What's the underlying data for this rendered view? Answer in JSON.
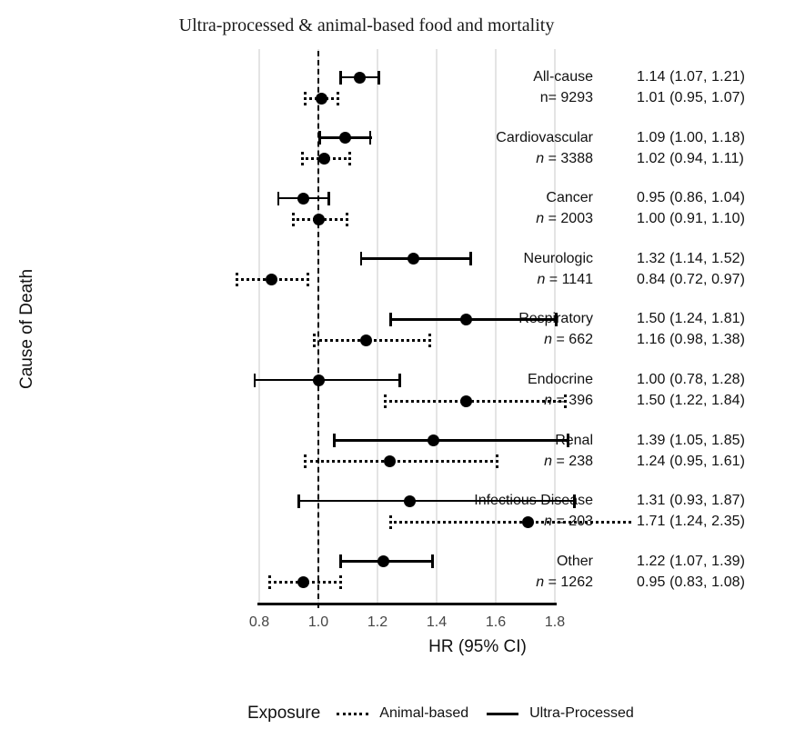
{
  "figure_title": "Ultra-processed & animal-based food and mortality",
  "y_axis_title": "Cause of Death",
  "x_axis_title": "HR (95% CI)",
  "legend": {
    "title": "Exposure",
    "items": [
      {
        "label": "Animal-based",
        "line_style": "dotted"
      },
      {
        "label": "Ultra-Processed",
        "line_style": "solid"
      }
    ]
  },
  "chart_data": {
    "type": "forest",
    "title": "Ultra-processed & animal-based food and mortality",
    "xlabel": "HR (95% CI)",
    "ylabel": "Cause of Death",
    "x_axis": {
      "min": 0.8,
      "max": 1.8,
      "ticks": [
        0.8,
        1.0,
        1.2,
        1.4,
        1.6,
        1.8
      ],
      "tick_labels": [
        "0.8",
        "1.0",
        "1.2",
        "1.4",
        "1.6",
        "1.8"
      ],
      "reference_line": 1.0,
      "grid": true
    },
    "series_names": [
      "Ultra-Processed",
      "Animal-based"
    ],
    "groups": [
      {
        "cause": "All-cause",
        "n_text": "n= 9293",
        "n_italic": false,
        "ultra_processed": {
          "hr": 1.14,
          "ci_low": 1.07,
          "ci_high": 1.21,
          "label": "1.14 (1.07, 1.21)"
        },
        "animal_based": {
          "hr": 1.01,
          "ci_low": 0.95,
          "ci_high": 1.07,
          "label": "1.01 (0.95, 1.07)"
        }
      },
      {
        "cause": "Cardiovascular",
        "n_text": "n = 3388",
        "n_italic": true,
        "ultra_processed": {
          "hr": 1.09,
          "ci_low": 1.0,
          "ci_high": 1.18,
          "label": "1.09 (1.00, 1.18)"
        },
        "animal_based": {
          "hr": 1.02,
          "ci_low": 0.94,
          "ci_high": 1.11,
          "label": "1.02 (0.94, 1.11)"
        }
      },
      {
        "cause": "Cancer",
        "n_text": "n = 2003",
        "n_italic": true,
        "ultra_processed": {
          "hr": 0.95,
          "ci_low": 0.86,
          "ci_high": 1.04,
          "label": "0.95 (0.86, 1.04)"
        },
        "animal_based": {
          "hr": 1.0,
          "ci_low": 0.91,
          "ci_high": 1.1,
          "label": "1.00 (0.91, 1.10)"
        }
      },
      {
        "cause": "Neurologic",
        "n_text": "n = 1141",
        "n_italic": true,
        "ultra_processed": {
          "hr": 1.32,
          "ci_low": 1.14,
          "ci_high": 1.52,
          "label": "1.32 (1.14, 1.52)"
        },
        "animal_based": {
          "hr": 0.84,
          "ci_low": 0.72,
          "ci_high": 0.97,
          "label": "0.84 (0.72, 0.97)"
        }
      },
      {
        "cause": "Respiratory",
        "n_text": "n = 662",
        "n_italic": true,
        "ultra_processed": {
          "hr": 1.5,
          "ci_low": 1.24,
          "ci_high": 1.81,
          "label": "1.50 (1.24, 1.81)"
        },
        "animal_based": {
          "hr": 1.16,
          "ci_low": 0.98,
          "ci_high": 1.38,
          "label": "1.16 (0.98, 1.38)"
        }
      },
      {
        "cause": "Endocrine",
        "n_text": "n = 396",
        "n_italic": true,
        "ultra_processed": {
          "hr": 1.0,
          "ci_low": 0.78,
          "ci_high": 1.28,
          "label": "1.00 (0.78, 1.28)"
        },
        "animal_based": {
          "hr": 1.5,
          "ci_low": 1.22,
          "ci_high": 1.84,
          "label": "1.50 (1.22, 1.84)"
        }
      },
      {
        "cause": "Renal",
        "n_text": "n = 238",
        "n_italic": true,
        "ultra_processed": {
          "hr": 1.39,
          "ci_low": 1.05,
          "ci_high": 1.85,
          "label": "1.39 (1.05, 1.85)"
        },
        "animal_based": {
          "hr": 1.24,
          "ci_low": 0.95,
          "ci_high": 1.61,
          "label": "1.24 (0.95, 1.61)"
        }
      },
      {
        "cause": "Infectious Disease",
        "n_text": "n = 203",
        "n_italic": true,
        "ultra_processed": {
          "hr": 1.31,
          "ci_low": 0.93,
          "ci_high": 1.87,
          "label": "1.31 (0.93, 1.87)"
        },
        "animal_based": {
          "hr": 1.71,
          "ci_low": 1.24,
          "ci_high": 2.35,
          "label": "1.71 (1.24, 2.35)"
        }
      },
      {
        "cause": "Other",
        "n_text": "n = 1262",
        "n_italic": true,
        "ultra_processed": {
          "hr": 1.22,
          "ci_low": 1.07,
          "ci_high": 1.39,
          "label": "1.22 (1.07, 1.39)"
        },
        "animal_based": {
          "hr": 0.95,
          "ci_low": 0.83,
          "ci_high": 1.08,
          "label": "0.95 (0.83, 1.08)"
        }
      }
    ]
  }
}
